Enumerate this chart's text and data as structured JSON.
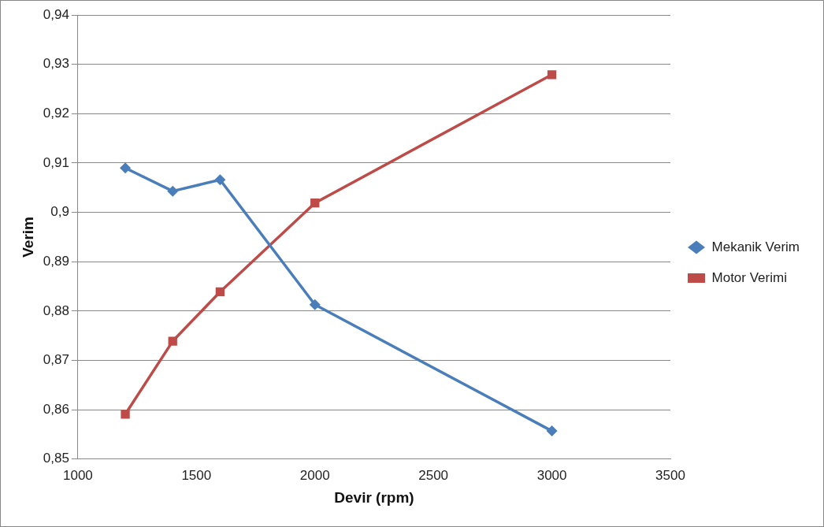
{
  "chart_data": {
    "type": "line",
    "xlabel": "Devir (rpm)",
    "ylabel": "Verim",
    "xlim": [
      1000,
      3500
    ],
    "xticks": [
      1000,
      1500,
      2000,
      2500,
      3000,
      3500
    ],
    "ylim": [
      0.85,
      0.94
    ],
    "yticks": [
      {
        "value": 0.85,
        "label": "0,85"
      },
      {
        "value": 0.86,
        "label": "0,86"
      },
      {
        "value": 0.87,
        "label": "0,87"
      },
      {
        "value": 0.88,
        "label": "0,88"
      },
      {
        "value": 0.89,
        "label": "0,89"
      },
      {
        "value": 0.9,
        "label": "0,9"
      },
      {
        "value": 0.91,
        "label": "0,91"
      },
      {
        "value": 0.92,
        "label": "0,92"
      },
      {
        "value": 0.93,
        "label": "0,93"
      },
      {
        "value": 0.94,
        "label": "0,94"
      }
    ],
    "x": [
      1200,
      1400,
      1600,
      2000,
      3000
    ],
    "series": [
      {
        "name": "Mekanik Verim",
        "color": "#4a7ebb",
        "marker": "diamond",
        "values": [
          0.909,
          0.9043,
          0.9066,
          0.8813,
          0.8557
        ]
      },
      {
        "name": "Motor Verimi",
        "color": "#be4b48",
        "marker": "square",
        "values": [
          0.8591,
          0.8739,
          0.8839,
          0.9019,
          0.9279
        ]
      }
    ],
    "grid": "y",
    "legend": "right",
    "line_style": "solid"
  }
}
